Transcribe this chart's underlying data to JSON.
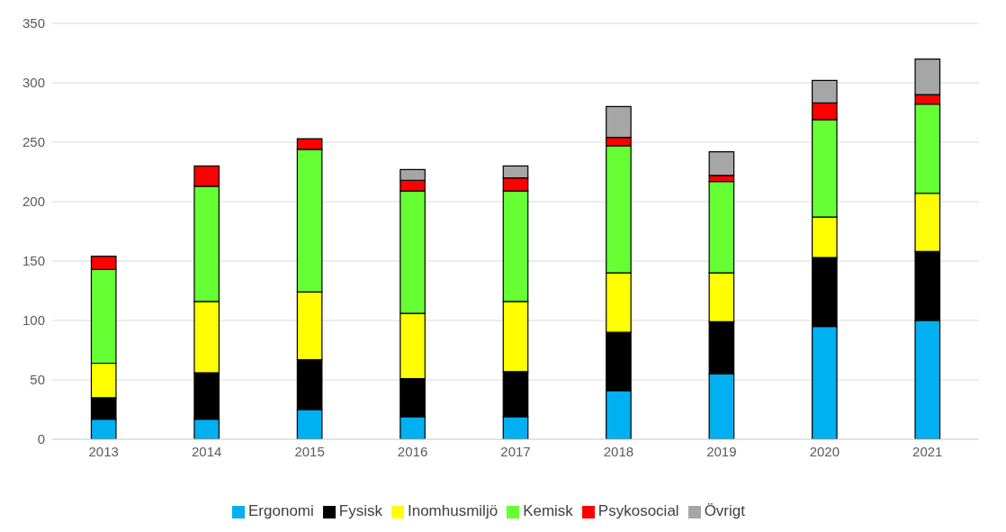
{
  "chart_data": {
    "type": "bar",
    "stacked": true,
    "categories": [
      "2013",
      "2014",
      "2015",
      "2016",
      "2017",
      "2018",
      "2019",
      "2020",
      "2021"
    ],
    "series": [
      {
        "name": "Ergonomi",
        "color": "#00b0f0",
        "values": [
          17,
          17,
          25,
          19,
          19,
          41,
          55,
          95,
          100
        ]
      },
      {
        "name": "Fysisk",
        "color": "#000000",
        "values": [
          18,
          39,
          42,
          32,
          38,
          49,
          44,
          58,
          58
        ]
      },
      {
        "name": "Inomhusmiljö",
        "color": "#ffff00",
        "values": [
          29,
          60,
          57,
          55,
          59,
          50,
          41,
          34,
          49
        ]
      },
      {
        "name": "Kemisk",
        "color": "#66ff33",
        "values": [
          79,
          97,
          120,
          103,
          93,
          107,
          77,
          82,
          75
        ]
      },
      {
        "name": "Psykosocial",
        "color": "#ff0000",
        "values": [
          11,
          17,
          9,
          9,
          11,
          7,
          5,
          14,
          8
        ]
      },
      {
        "name": "Övrigt",
        "color": "#a6a6a6",
        "values": [
          0,
          0,
          0,
          9,
          10,
          26,
          20,
          19,
          30
        ]
      }
    ],
    "ylim": [
      0,
      350
    ],
    "yticks": [
      0,
      50,
      100,
      150,
      200,
      250,
      300,
      350
    ],
    "grid": "y",
    "legend": "bottom"
  }
}
